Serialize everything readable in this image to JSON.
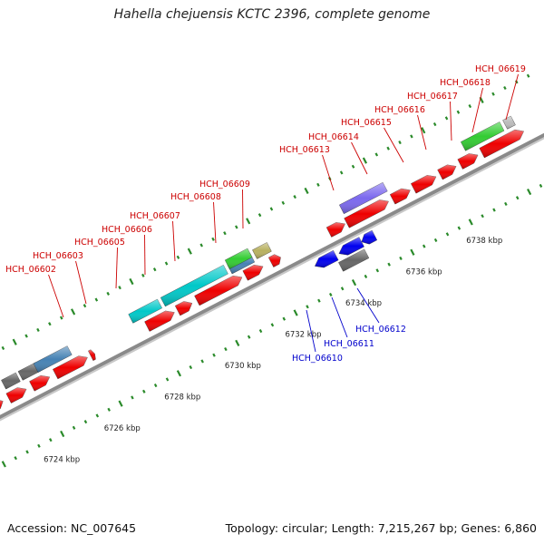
{
  "title": "Hahella chejuensis KCTC 2396, complete genome",
  "footer": {
    "accession": "Accession: NC_007645",
    "summary": "Topology: circular; Length: 7,215,267 bp; Genes: 6,860"
  },
  "colors": {
    "red": "#ee0000",
    "blue": "#0000ee",
    "cyan": "#00c8c8",
    "steelblue": "#4682b4",
    "gray": "#666666",
    "purple": "#7b68ee",
    "green": "#33cc33",
    "olive": "#b8b060",
    "tick_green": "#2a8a2a",
    "backbone": "#8a8a8a",
    "label_red": "#cc0000",
    "label_blue": "#0000cc"
  },
  "kbp_labels": [
    "6724 kbp",
    "6726 kbp",
    "6728 kbp",
    "6730 kbp",
    "6732 kbp",
    "6734 kbp",
    "6736 kbp",
    "6738 kbp"
  ],
  "top_labels": [
    "HCH_06602",
    "HCH_06603",
    "HCH_06605",
    "HCH_06606",
    "HCH_06607",
    "HCH_06608",
    "HCH_06609",
    "HCH_06613",
    "HCH_06614",
    "HCH_06615",
    "HCH_06616",
    "HCH_06617",
    "HCH_06618",
    "HCH_06619"
  ],
  "bottom_labels": [
    "HCH_06610",
    "HCH_06611",
    "HCH_06612"
  ]
}
